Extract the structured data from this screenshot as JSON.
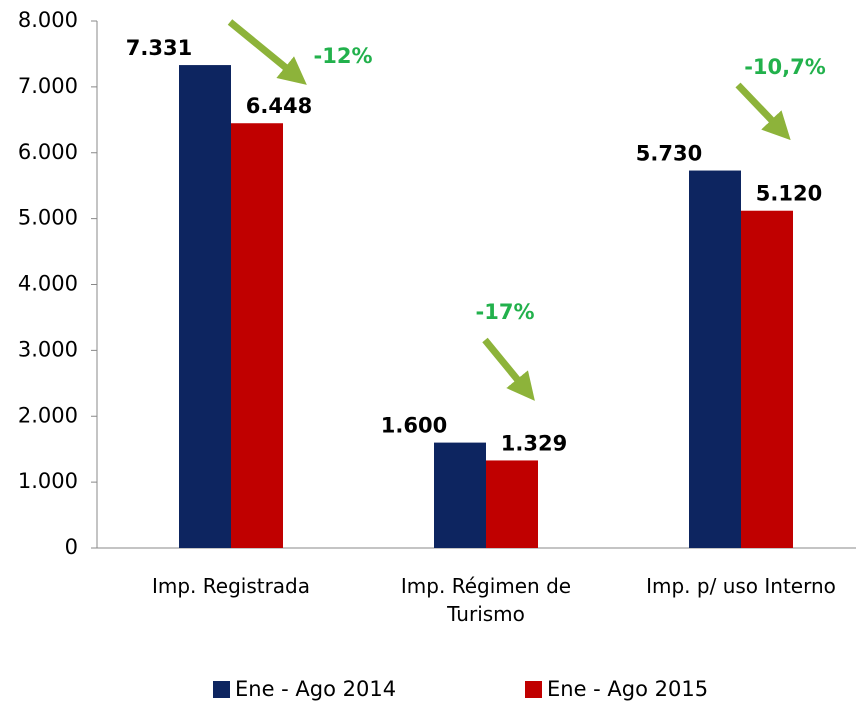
{
  "chart_data": {
    "type": "bar",
    "categories": [
      "Imp. Registrada",
      "Imp. Régimen de Turismo",
      "Imp. p/ uso Interno"
    ],
    "series": [
      {
        "name": "Ene - Ago 2014",
        "color": "#0d2560",
        "values": [
          7331,
          1600,
          5730
        ],
        "value_labels": [
          "7.331",
          "1.600",
          "5.730"
        ]
      },
      {
        "name": "Ene - Ago 2015",
        "color": "#c00000",
        "values": [
          6448,
          1329,
          5120
        ],
        "value_labels": [
          "6.448",
          "1.329",
          "5.120"
        ]
      }
    ],
    "annotations": [
      "-12%",
      "-17%",
      "-10,7%"
    ],
    "ylim": [
      0,
      8000
    ],
    "yticks": [
      {
        "value": 0,
        "label": "0"
      },
      {
        "value": 1000,
        "label": "1.000"
      },
      {
        "value": 2000,
        "label": "2.000"
      },
      {
        "value": 3000,
        "label": "3.000"
      },
      {
        "value": 4000,
        "label": "4.000"
      },
      {
        "value": 5000,
        "label": "5.000"
      },
      {
        "value": 6000,
        "label": "6.000"
      },
      {
        "value": 7000,
        "label": "7.000"
      },
      {
        "value": 8000,
        "label": "8.000"
      }
    ],
    "legend": "bottom"
  }
}
